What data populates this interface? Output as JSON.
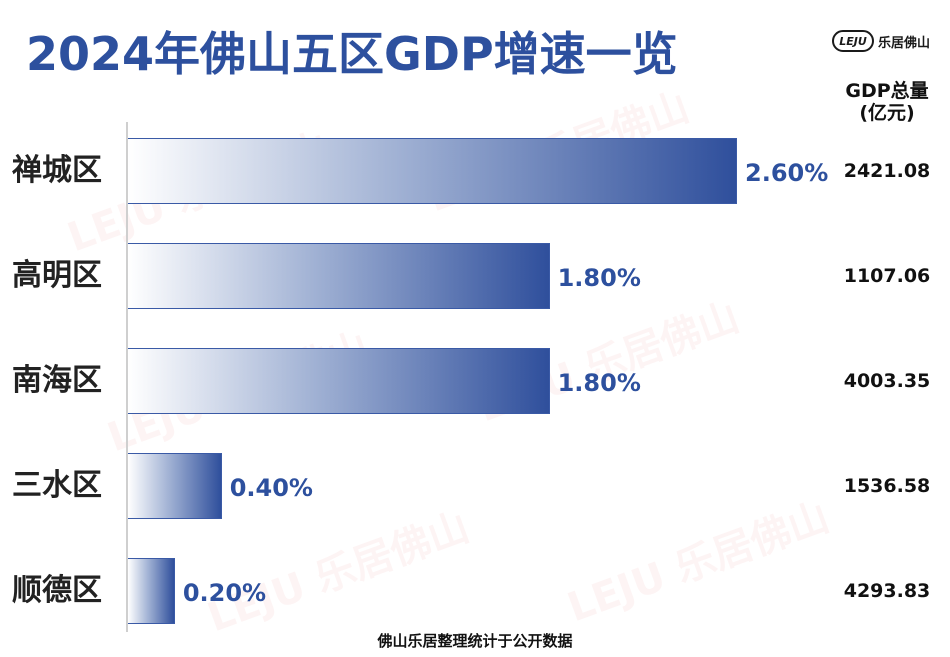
{
  "title": "2024年佛山五区GDP增速一览",
  "logo": {
    "mark": "LEJU",
    "text": "乐居佛山"
  },
  "column_header": {
    "line1": "GDP总量",
    "line2": "(亿元)"
  },
  "footer": "佛山乐居整理统计于公开数据",
  "colors": {
    "accent": "#2d509e",
    "bar_end": "#2f4f9c",
    "bar_start": "#ffffff"
  },
  "chart_data": {
    "type": "bar",
    "orientation": "horizontal",
    "title": "2024年佛山五区GDP增速一览",
    "categories": [
      "禅城区",
      "高明区",
      "南海区",
      "三水区",
      "顺德区"
    ],
    "values": [
      2.6,
      1.8,
      1.8,
      0.4,
      0.2
    ],
    "value_labels": [
      "2.60%",
      "1.80%",
      "1.80%",
      "0.40%",
      "0.20%"
    ],
    "gdp_total": [
      "2421.08",
      "1107.06",
      "4003.35",
      "1536.58",
      "4293.83"
    ],
    "xlim": [
      0,
      2.6
    ],
    "grid": false,
    "legend": "none"
  }
}
